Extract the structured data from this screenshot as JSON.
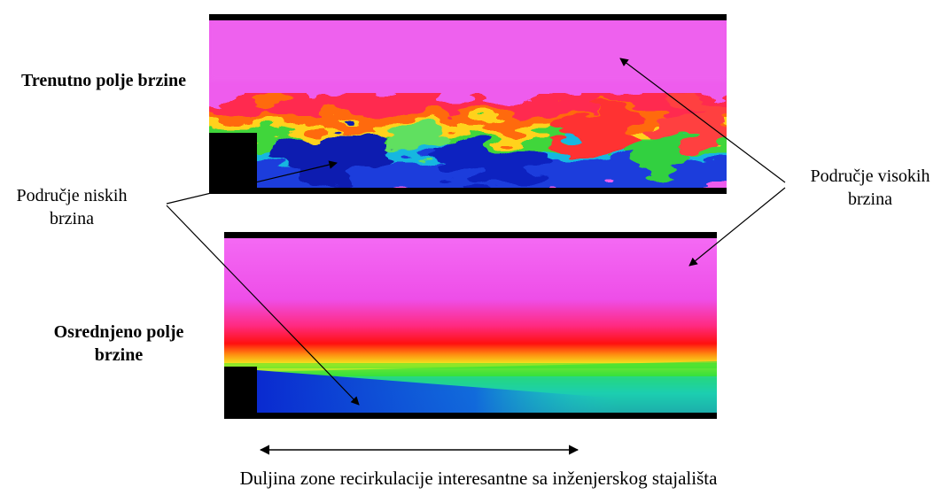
{
  "labels": {
    "instantaneous_field": "Trenutno polje brzine",
    "averaged_field": "Osrednjeno polje brzine",
    "low_speed_region": "Područje niskih brzina",
    "high_speed_region": "Područje visokih brzina",
    "caption": "Duljina zone recirkulacije interesantne sa inženjerskog stajališta"
  },
  "colors": {
    "high_speed": "#f050f0",
    "transition": "#ff1a30",
    "mid_speed": "#20e020",
    "low_speed": "#0a3cd8",
    "wall": "#000000"
  },
  "icons": {
    "dimension_arrow": "double-headed-arrow"
  }
}
